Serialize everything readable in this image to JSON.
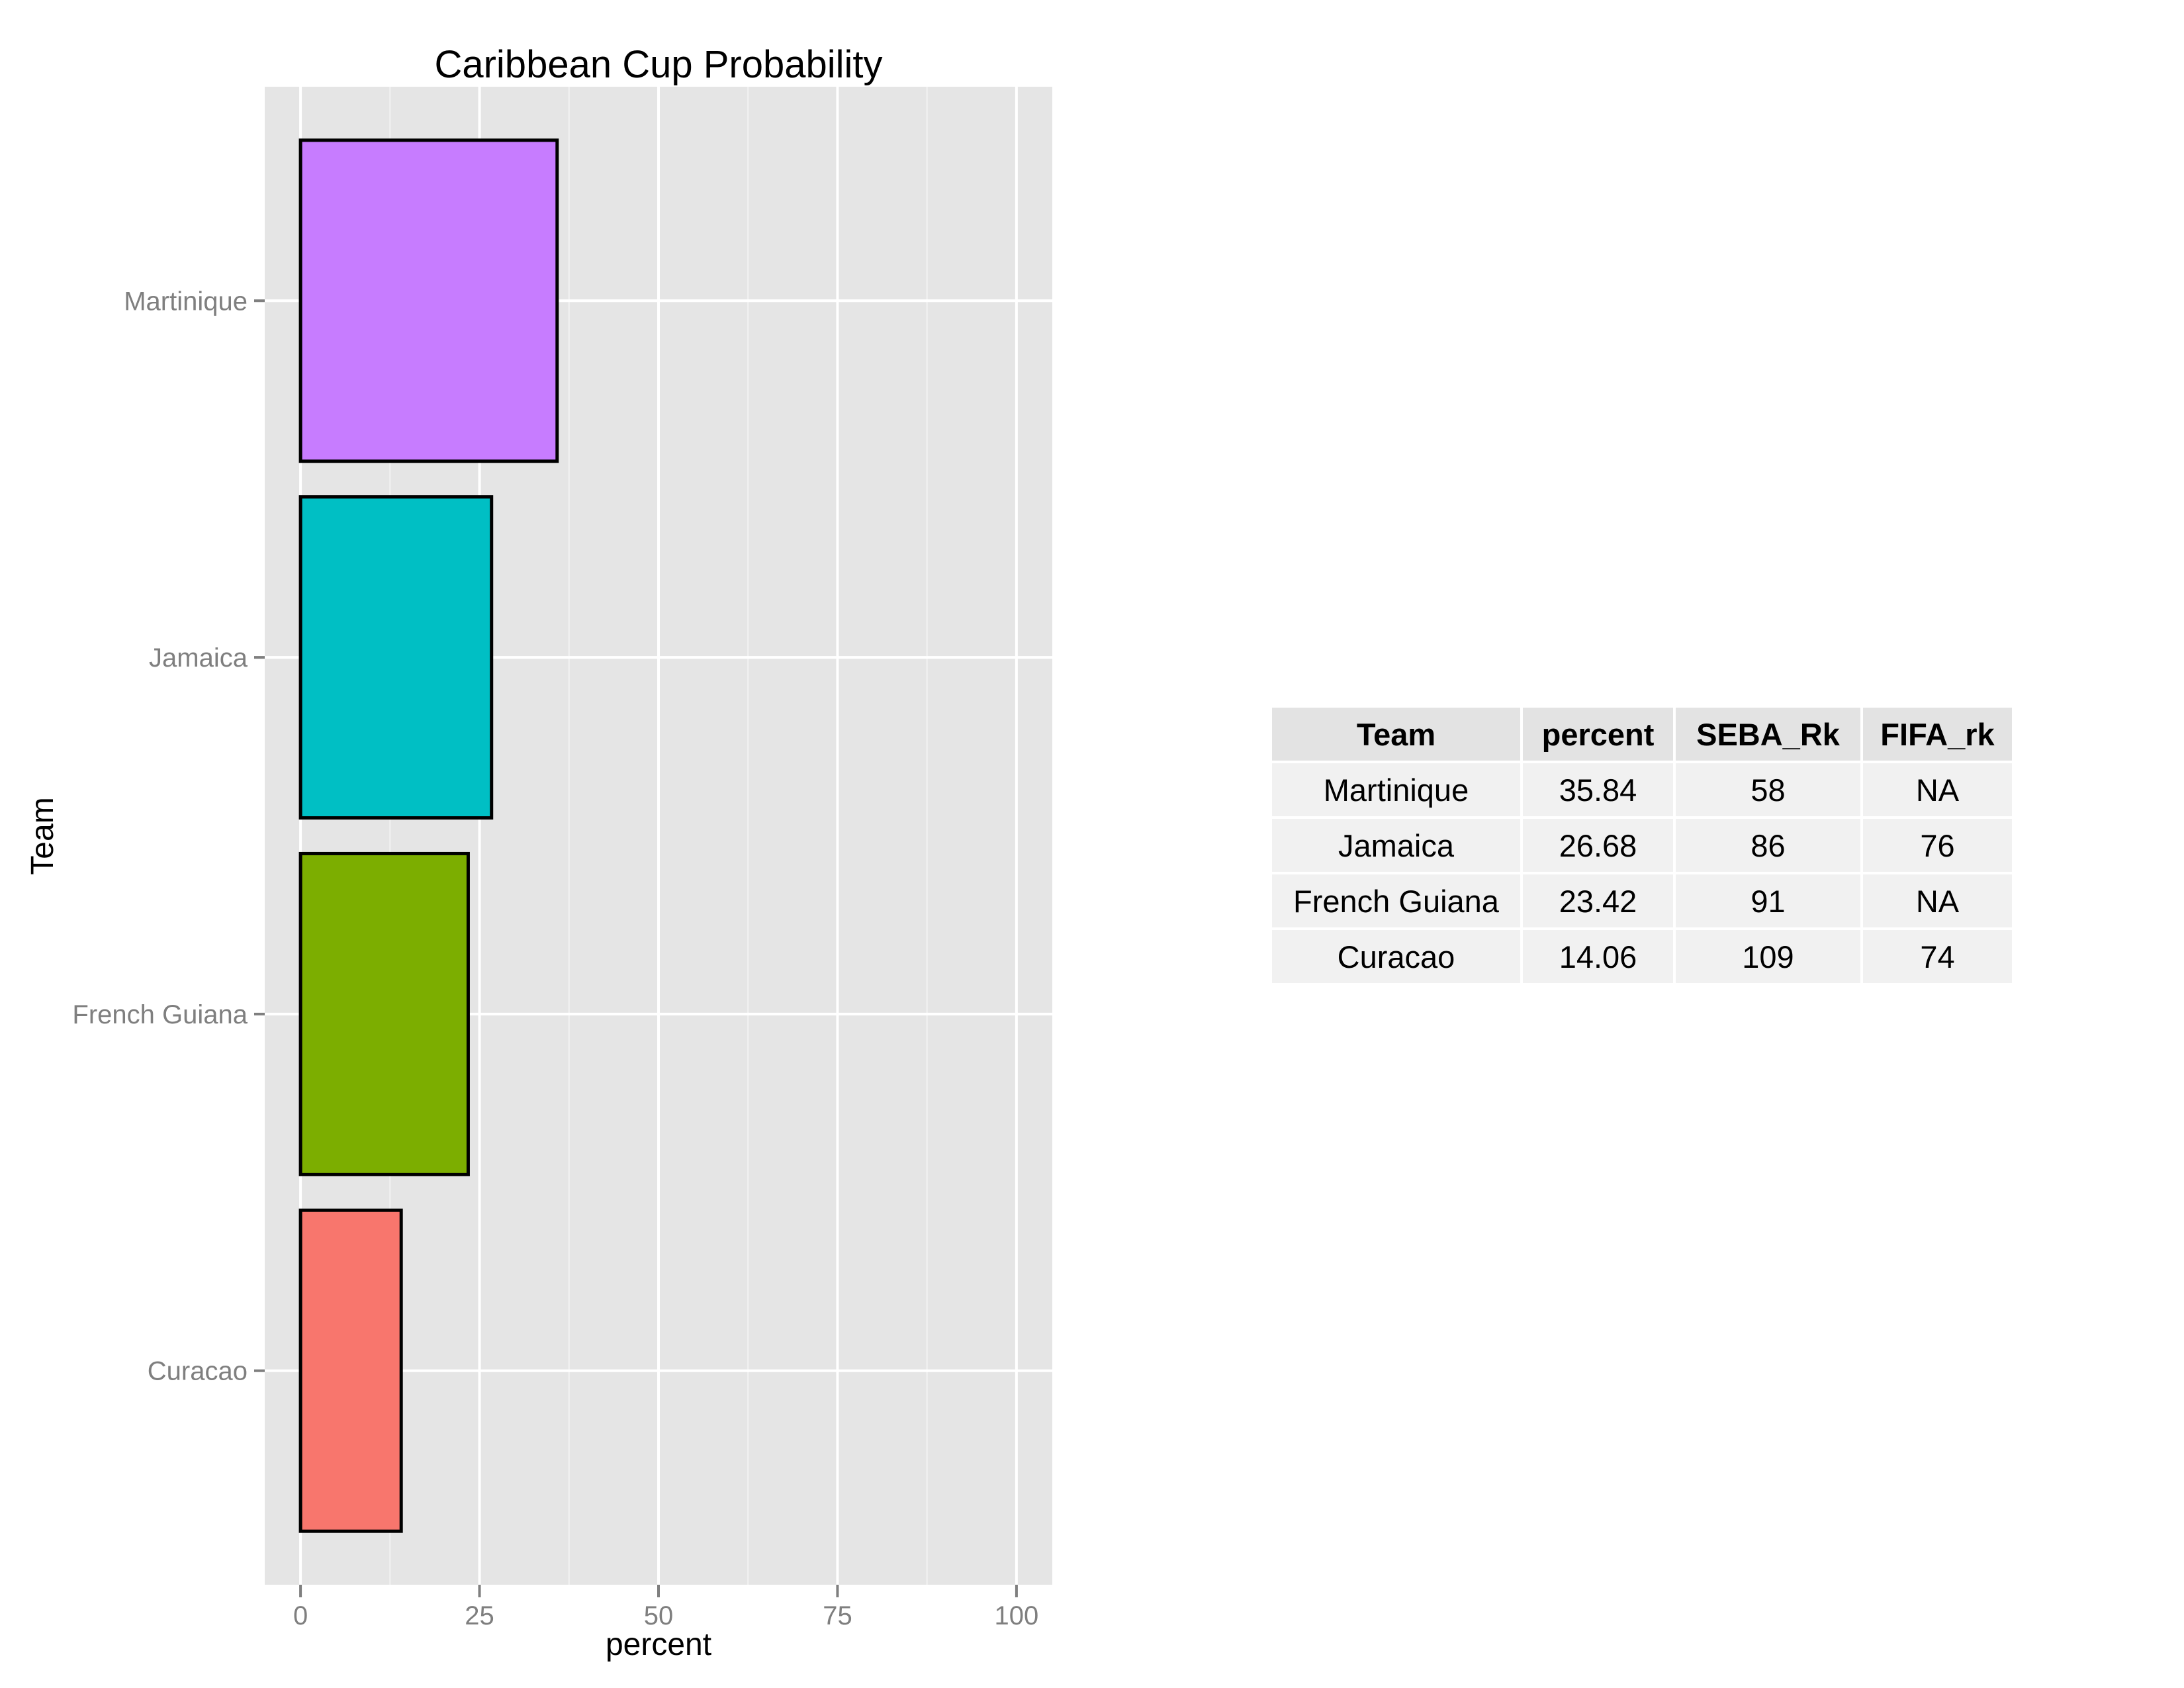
{
  "chart_data": {
    "type": "bar",
    "orientation": "horizontal",
    "title": "Caribbean Cup Probability",
    "xlabel": "percent",
    "ylabel": "Team",
    "xlim": [
      0,
      100
    ],
    "x_ticks": [
      0,
      25,
      50,
      75,
      100
    ],
    "x_tick_labels": [
      "0",
      "25",
      "50",
      "75",
      "100"
    ],
    "categories": [
      "Curacao",
      "French Guiana",
      "Jamaica",
      "Martinique"
    ],
    "values": [
      14.06,
      23.42,
      26.68,
      35.84
    ],
    "colors": [
      "#F8766D",
      "#7CAE00",
      "#00BFC4",
      "#C77CFF"
    ],
    "bar_outline_color": "#000000",
    "grid": true,
    "panel_background": "#E5E5E5"
  },
  "table": {
    "headers": [
      "Team",
      "percent",
      "SEBA_Rk",
      "FIFA_rk"
    ],
    "rows": [
      [
        "Martinique",
        "35.84",
        "58",
        "NA"
      ],
      [
        "Jamaica",
        "26.68",
        "86",
        "76"
      ],
      [
        "French Guiana",
        "23.42",
        "91",
        "NA"
      ],
      [
        "Curacao",
        "14.06",
        "109",
        "74"
      ]
    ]
  }
}
